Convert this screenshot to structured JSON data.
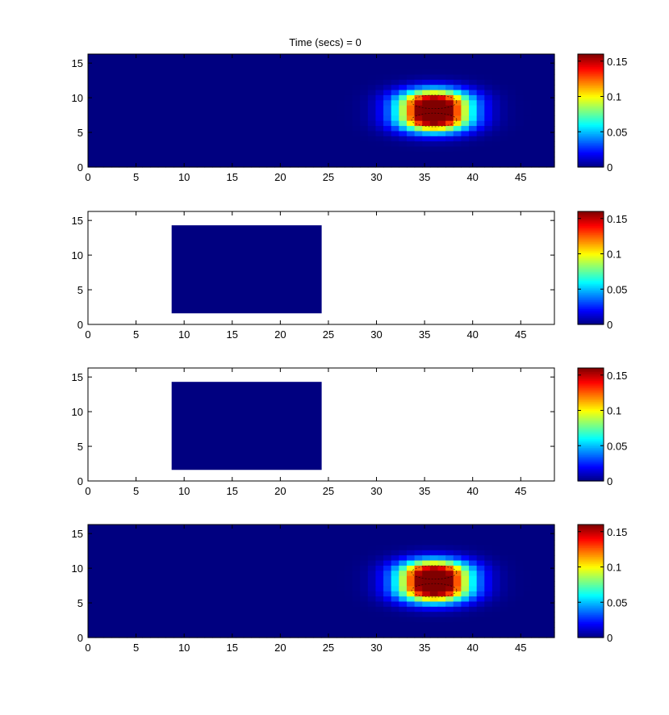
{
  "title": "Time (secs) = 0",
  "colormap": "jet",
  "colors": {
    "background": "#ffffff",
    "axis": "#000000",
    "field_floor": "#00008f",
    "jet_stops": [
      "#00008f",
      "#0000ff",
      "#00ffff",
      "#ffff00",
      "#ff0000",
      "#800000"
    ]
  },
  "chart_data": [
    {
      "type": "heatmap",
      "title": "Time (secs) = 0",
      "xlim": [
        0,
        48.5
      ],
      "ylim": [
        0,
        16.3
      ],
      "xticks": [
        0,
        5,
        10,
        15,
        20,
        25,
        30,
        35,
        40,
        45
      ],
      "yticks": [
        0,
        5,
        10,
        15
      ],
      "clim": [
        0,
        0.16
      ],
      "colorbar_ticks": [
        0,
        0.05,
        0.1,
        0.15
      ],
      "grid": false,
      "field": {
        "background": 0,
        "blobs": [
          {
            "x": 36,
            "y": 9.4,
            "sx": 2.6,
            "sy": 1.3,
            "peak": 0.16
          },
          {
            "x": 36,
            "y": 6.8,
            "sx": 2.6,
            "sy": 1.3,
            "peak": 0.16
          }
        ]
      }
    },
    {
      "type": "heatmap",
      "xlim": [
        0,
        48.5
      ],
      "ylim": [
        0,
        16.3
      ],
      "xticks": [
        0,
        5,
        10,
        15,
        20,
        25,
        30,
        35,
        40,
        45
      ],
      "yticks": [
        0,
        5,
        10,
        15
      ],
      "clim": [
        0,
        0.16
      ],
      "colorbar_ticks": [
        0,
        0.05,
        0.1,
        0.15
      ],
      "grid": false,
      "region": {
        "x": [
          8.7,
          24.3
        ],
        "y": [
          1.6,
          14.3
        ],
        "value": 0
      }
    },
    {
      "type": "heatmap",
      "xlim": [
        0,
        48.5
      ],
      "ylim": [
        0,
        16.3
      ],
      "xticks": [
        0,
        5,
        10,
        15,
        20,
        25,
        30,
        35,
        40,
        45
      ],
      "yticks": [
        0,
        5,
        10,
        15
      ],
      "clim": [
        0,
        0.16
      ],
      "colorbar_ticks": [
        0,
        0.05,
        0.1,
        0.15
      ],
      "grid": false,
      "region": {
        "x": [
          8.7,
          24.3
        ],
        "y": [
          1.6,
          14.3
        ],
        "value": 0
      }
    },
    {
      "type": "heatmap",
      "xlim": [
        0,
        48.5
      ],
      "ylim": [
        0,
        16.3
      ],
      "xticks": [
        0,
        5,
        10,
        15,
        20,
        25,
        30,
        35,
        40,
        45
      ],
      "yticks": [
        0,
        5,
        10,
        15
      ],
      "clim": [
        0,
        0.16
      ],
      "colorbar_ticks": [
        0,
        0.05,
        0.1,
        0.15
      ],
      "grid": false,
      "field": {
        "background": 0,
        "blobs": [
          {
            "x": 36,
            "y": 9.4,
            "sx": 2.6,
            "sy": 1.3,
            "peak": 0.16
          },
          {
            "x": 36,
            "y": 6.8,
            "sx": 2.6,
            "sy": 1.3,
            "peak": 0.16
          }
        ]
      }
    }
  ]
}
